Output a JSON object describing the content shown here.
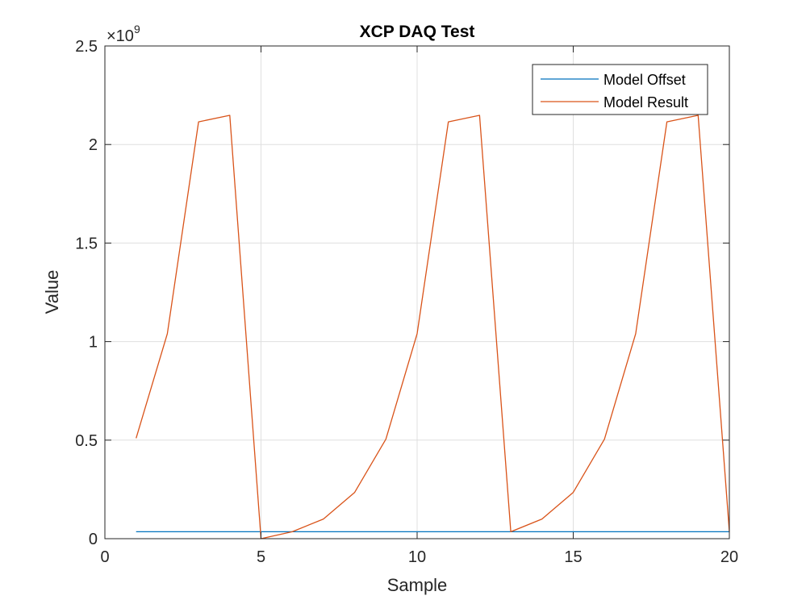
{
  "chart_data": {
    "type": "line",
    "title": "XCP DAQ Test",
    "xlabel": "Sample",
    "ylabel": "Value",
    "y_exponent_label": "×10",
    "y_exponent_power": "9",
    "xlim": [
      0,
      20
    ],
    "ylim": [
      0,
      2.5
    ],
    "y_multiplier": 1000000000,
    "x_ticks": [
      0,
      5,
      10,
      15,
      20
    ],
    "x_tick_labels": [
      "0",
      "5",
      "10",
      "15",
      "20"
    ],
    "y_ticks": [
      0,
      0.5,
      1,
      1.5,
      2,
      2.5
    ],
    "y_tick_labels": [
      "0",
      "0.5",
      "1",
      "1.5",
      "2",
      "2.5"
    ],
    "grid": true,
    "legend_position": "top-right",
    "x": [
      1,
      2,
      3,
      4,
      5,
      6,
      7,
      8,
      9,
      10,
      11,
      12,
      13,
      14,
      15,
      16,
      17,
      18,
      19,
      20
    ],
    "series": [
      {
        "name": "Model Offset",
        "color": "#0072BD",
        "values": [
          0.035,
          0.035,
          0.035,
          0.035,
          0.035,
          0.035,
          0.035,
          0.035,
          0.035,
          0.035,
          0.035,
          0.035,
          0.035,
          0.035,
          0.035,
          0.035,
          0.035,
          0.035,
          0.035,
          0.035
        ]
      },
      {
        "name": "Model Result",
        "color": "#D95319",
        "values": [
          0.51,
          1.04,
          2.115,
          2.148,
          0.0,
          0.035,
          0.1,
          0.235,
          0.505,
          1.04,
          2.115,
          2.148,
          0.035,
          0.1,
          0.235,
          0.505,
          1.04,
          2.115,
          2.148,
          0.035
        ]
      }
    ]
  }
}
